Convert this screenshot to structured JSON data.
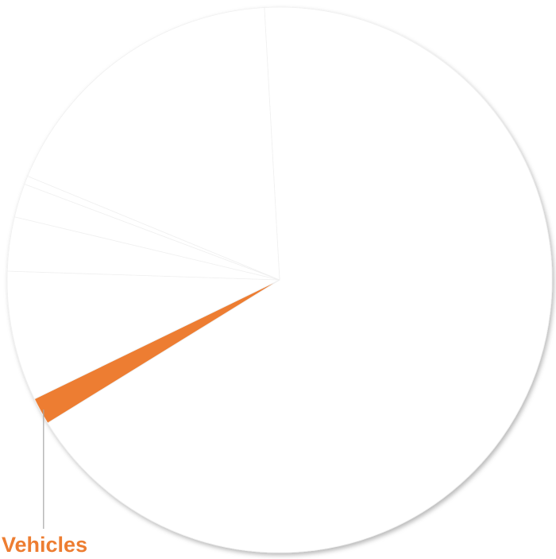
{
  "chart_data": {
    "type": "pie",
    "categories": [
      null,
      "Vehicles",
      null,
      null,
      null,
      null,
      null
    ],
    "values": [
      67.1,
      1.6,
      7.7,
      3.2,
      2.0,
      0.5,
      17.9
    ],
    "colors": [
      "#ffffff",
      "#ed7d31",
      "#ffffff",
      "#ffffff",
      "#ffffff",
      "#ffffff",
      "#ffffff"
    ]
  }
}
